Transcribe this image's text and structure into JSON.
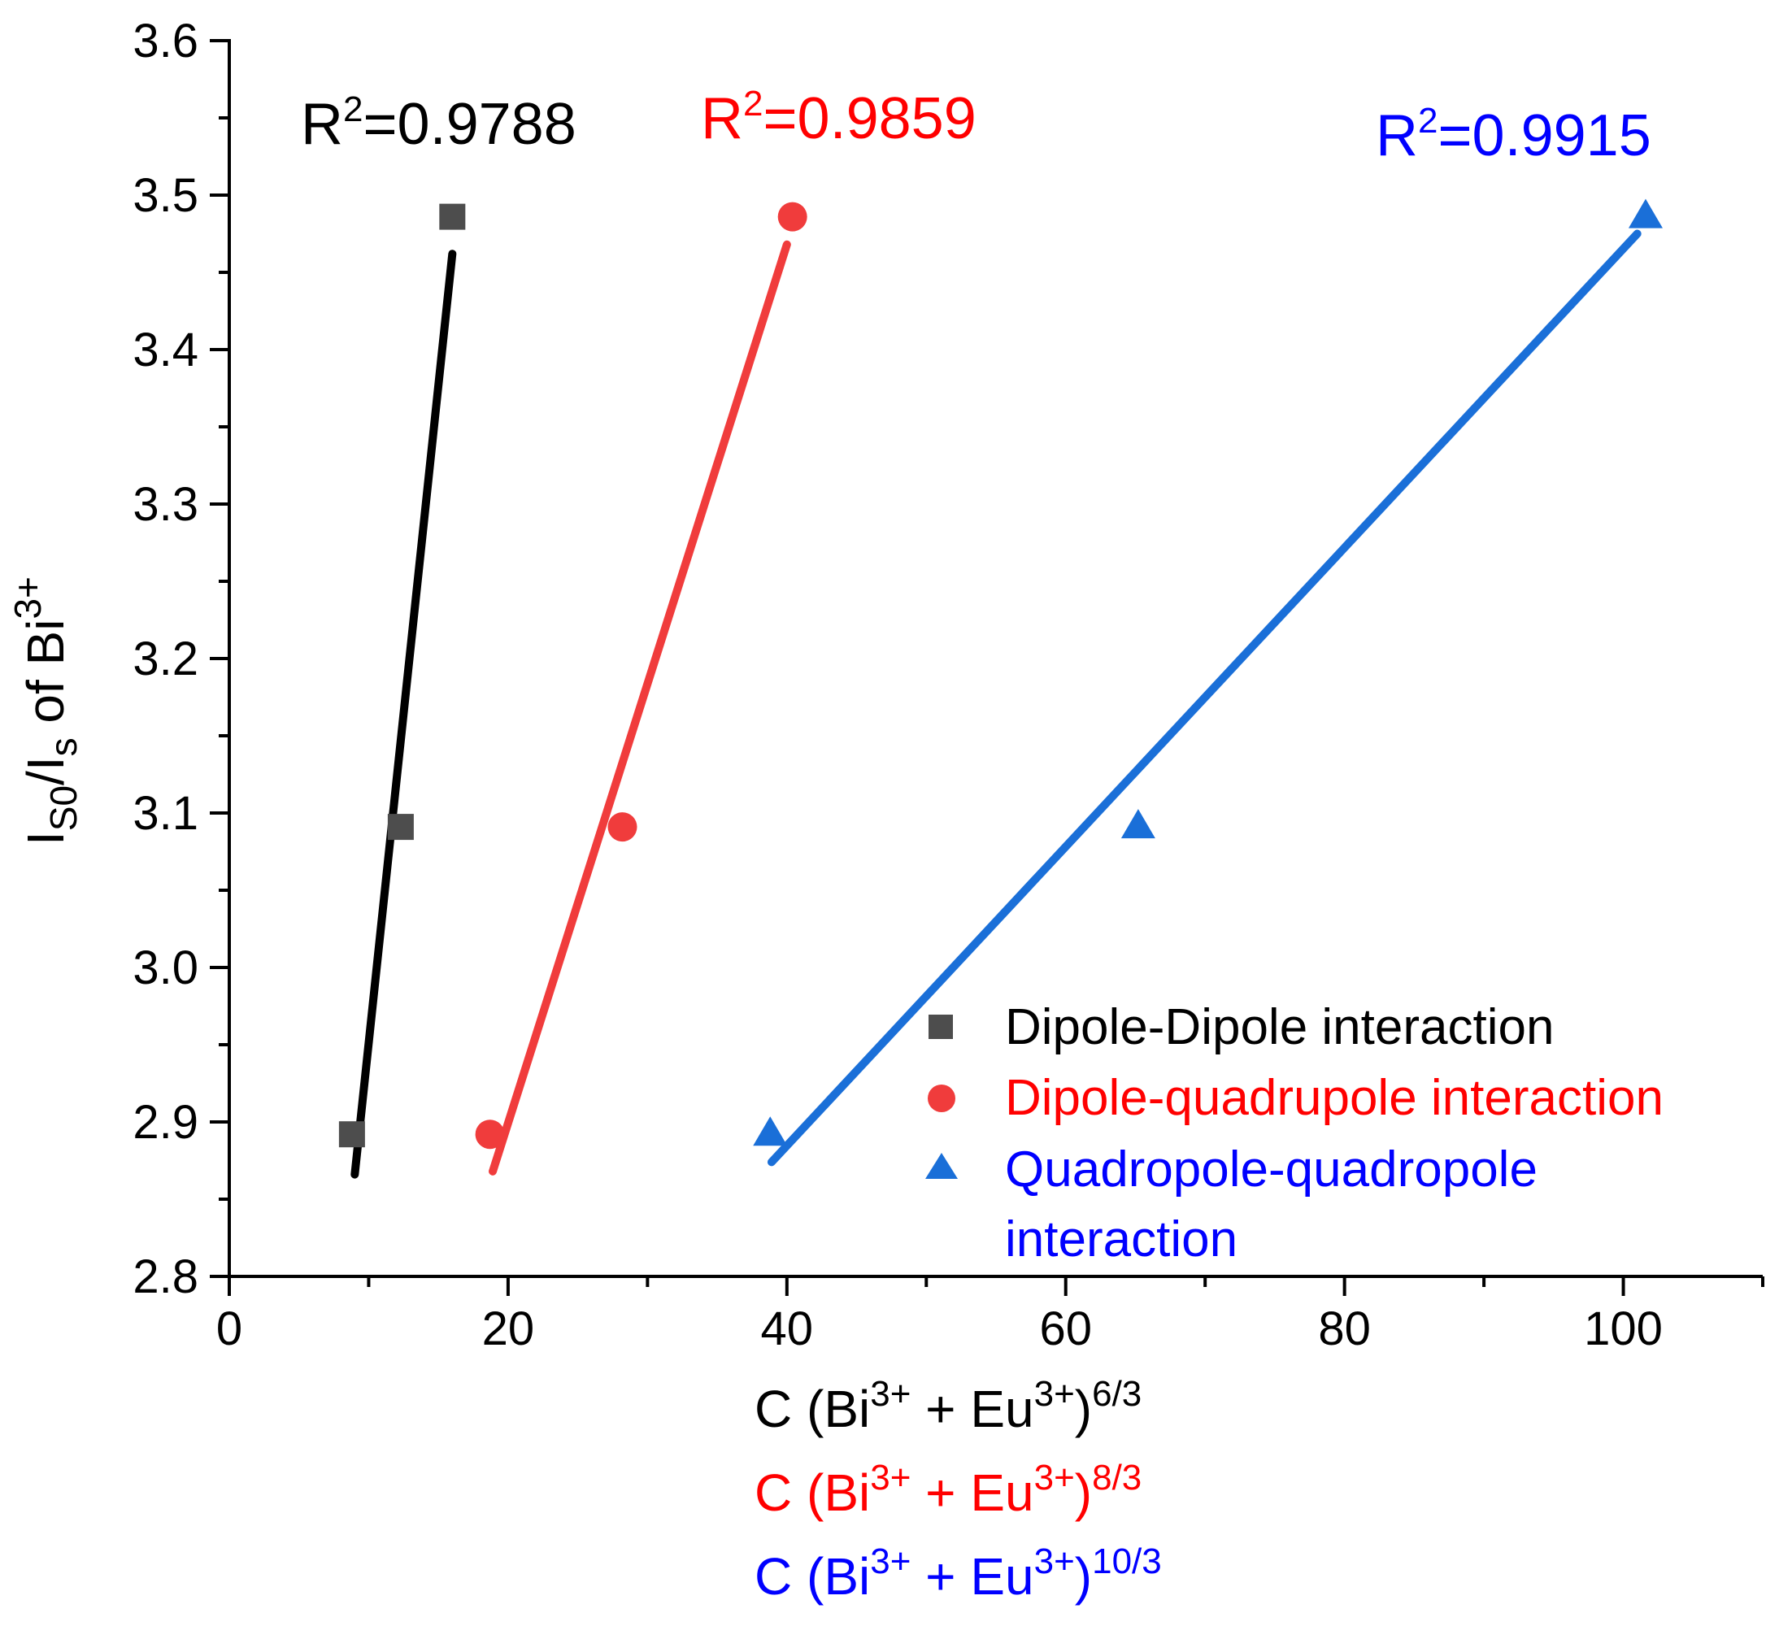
{
  "chart_data": {
    "type": "scatter",
    "title": "",
    "ylabel": {
      "base": "I",
      "sub1": "S0",
      "mid": "/I",
      "sub2": "s",
      "post": " of Bi",
      "sup": "3+"
    },
    "xlabels": [
      {
        "main": "C (Bi",
        "sup1": "3+",
        "mid": " + Eu",
        "sup2": "3+",
        "close": ")",
        "exp": "6/3",
        "color": "#000000"
      },
      {
        "main": "C (Bi",
        "sup1": "3+",
        "mid": " + Eu",
        "sup2": "3+",
        "close": ")",
        "exp": "8/3",
        "color": "#ff0000"
      },
      {
        "main": "C (Bi",
        "sup1": "3+",
        "mid": " + Eu",
        "sup2": "3+",
        "close": ")",
        "exp": "10/3",
        "color": "#0000ff"
      }
    ],
    "xlim": [
      0,
      110
    ],
    "ylim": [
      2.8,
      3.6
    ],
    "xticks": [
      0,
      20,
      40,
      60,
      80,
      100
    ],
    "xtick_labels": [
      "0",
      "20",
      "40",
      "60",
      "80",
      "100"
    ],
    "yticks": [
      2.8,
      2.9,
      3.0,
      3.1,
      3.2,
      3.3,
      3.4,
      3.5,
      3.6
    ],
    "ytick_labels": [
      "2.8",
      "2.9",
      "3.0",
      "3.1",
      "3.2",
      "3.3",
      "3.4",
      "3.5",
      "3.6"
    ],
    "grid": false,
    "legend_position": "bottom-right",
    "series": [
      {
        "name": "Dipole-Dipole interaction",
        "marker": "square",
        "marker_color": "#4d4d4d",
        "line_color": "#000000",
        "text_color": "#000000",
        "x": [
          8.8,
          12.3,
          16.0
        ],
        "y": [
          2.892,
          3.091,
          3.486
        ],
        "fit": {
          "x": [
            9.0,
            16.0
          ],
          "y": [
            2.866,
            3.462
          ]
        },
        "r2_prefix": "R",
        "r2_sup": "2",
        "r2_value": "=0.9788"
      },
      {
        "name": "Dipole-quadrupole interaction",
        "marker": "circle",
        "marker_color": "#f03c3c",
        "line_color": "#f03c3c",
        "text_color": "#ff0000",
        "x": [
          18.7,
          28.2,
          40.4
        ],
        "y": [
          2.892,
          3.091,
          3.486
        ],
        "fit": {
          "x": [
            18.9,
            40.0
          ],
          "y": [
            2.868,
            3.468
          ]
        },
        "r2_prefix": "R",
        "r2_sup": "2",
        "r2_value": "=0.9859"
      },
      {
        "name": "Quadropole-quadropole interaction",
        "legend_lines": [
          "Quadropole-quadropole",
          "interaction"
        ],
        "marker": "triangle",
        "marker_color": "#1a6fd8",
        "line_color": "#1a6fd8",
        "text_color": "#0000ff",
        "x": [
          38.8,
          65.2,
          101.6
        ],
        "y": [
          2.892,
          3.091,
          3.486
        ],
        "fit": {
          "x": [
            38.9,
            101.0
          ],
          "y": [
            2.874,
            3.475
          ]
        },
        "r2_prefix": "R",
        "r2_sup": "2",
        "r2_value": "=0.9915"
      }
    ]
  }
}
